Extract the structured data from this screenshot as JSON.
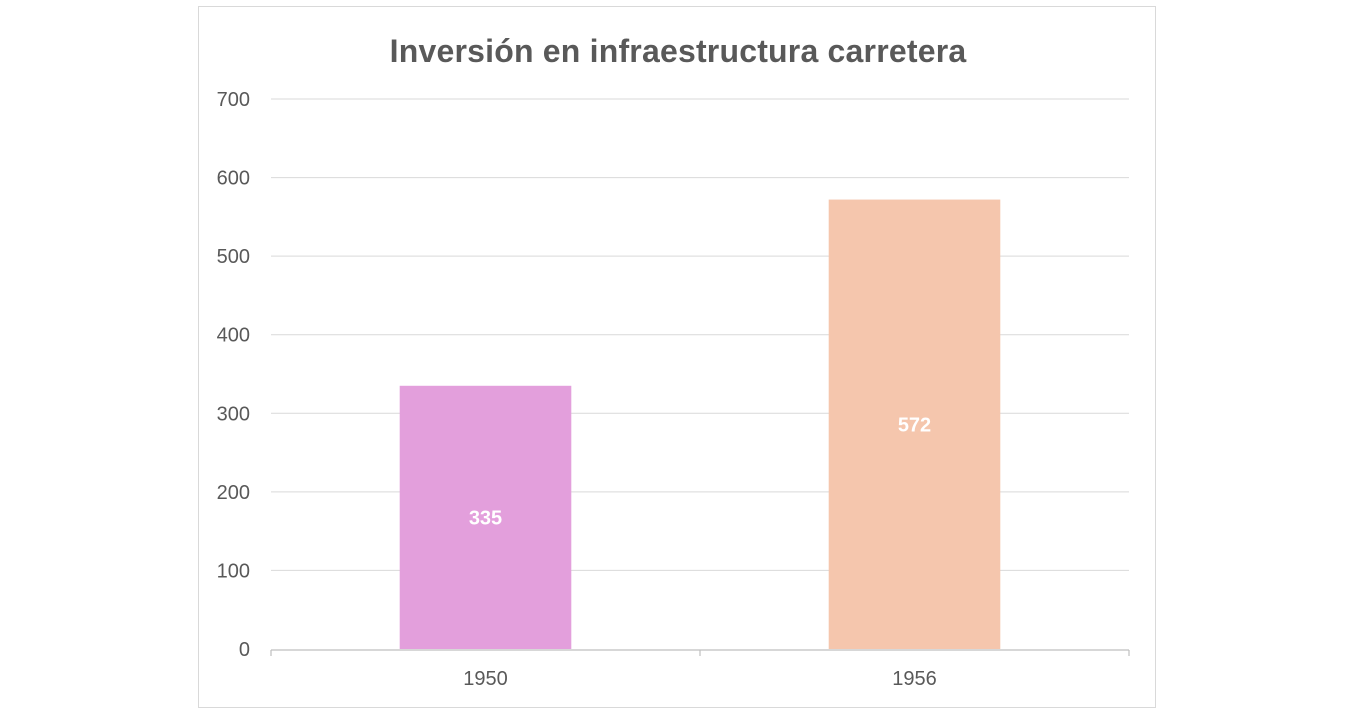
{
  "chart_data": {
    "type": "bar",
    "title": "Inversión en infraestructura carretera",
    "xlabel": "",
    "ylabel": "",
    "categories": [
      "1950",
      "1956"
    ],
    "values": [
      335,
      572
    ],
    "data_labels": [
      "335",
      "572"
    ],
    "bar_colors": [
      "#e39fdc",
      "#f5c6ad"
    ],
    "ylim": [
      0,
      700
    ],
    "yticks": [
      "0",
      "100",
      "200",
      "300",
      "400",
      "500",
      "600",
      "700"
    ],
    "grid": true,
    "legend": "none"
  }
}
